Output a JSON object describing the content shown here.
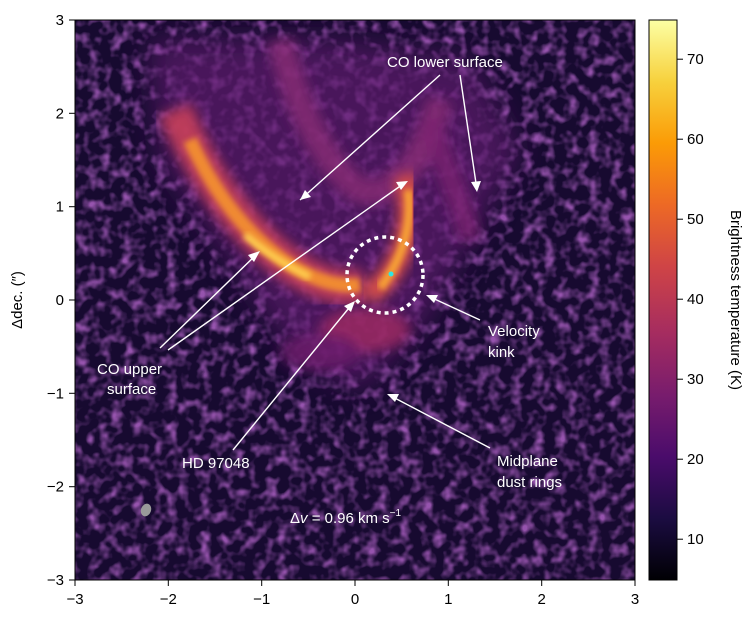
{
  "figure": {
    "x_ticks": [
      "−3",
      "−2",
      "−1",
      "0",
      "1",
      "2",
      "3"
    ],
    "y_ticks": [
      "3",
      "2",
      "1",
      "0",
      "−1",
      "−2",
      "−3"
    ],
    "ylabel": "Δdec. (″)",
    "colorbar": {
      "label": "Brightness temperature (K)",
      "ticks": [
        "70",
        "60",
        "50",
        "40",
        "30",
        "20",
        "10"
      ],
      "range": [
        5,
        75
      ],
      "colormap": [
        "#000004",
        "#1b0c41",
        "#4a0c6b",
        "#781c6d",
        "#a52c60",
        "#cf4446",
        "#ed6925",
        "#fb9b06",
        "#f7d13d",
        "#fcffa4"
      ]
    },
    "annotations": {
      "co_lower": "CO lower surface",
      "co_upper_1": "CO upper",
      "co_upper_2": "surface",
      "velocity_1": "Velocity",
      "velocity_2": "kink",
      "star": "HD 97048",
      "dust_1": "Midplane",
      "dust_2": "dust rings",
      "dv_prefix": "Δ",
      "dv_var": "v",
      "dv_text": " = 0.96 km s",
      "dv_exp": "−1"
    },
    "colors": {
      "annotation": "#ffffff",
      "star_marker": "#2ee6e6",
      "beam": "#9a9a9a"
    }
  }
}
